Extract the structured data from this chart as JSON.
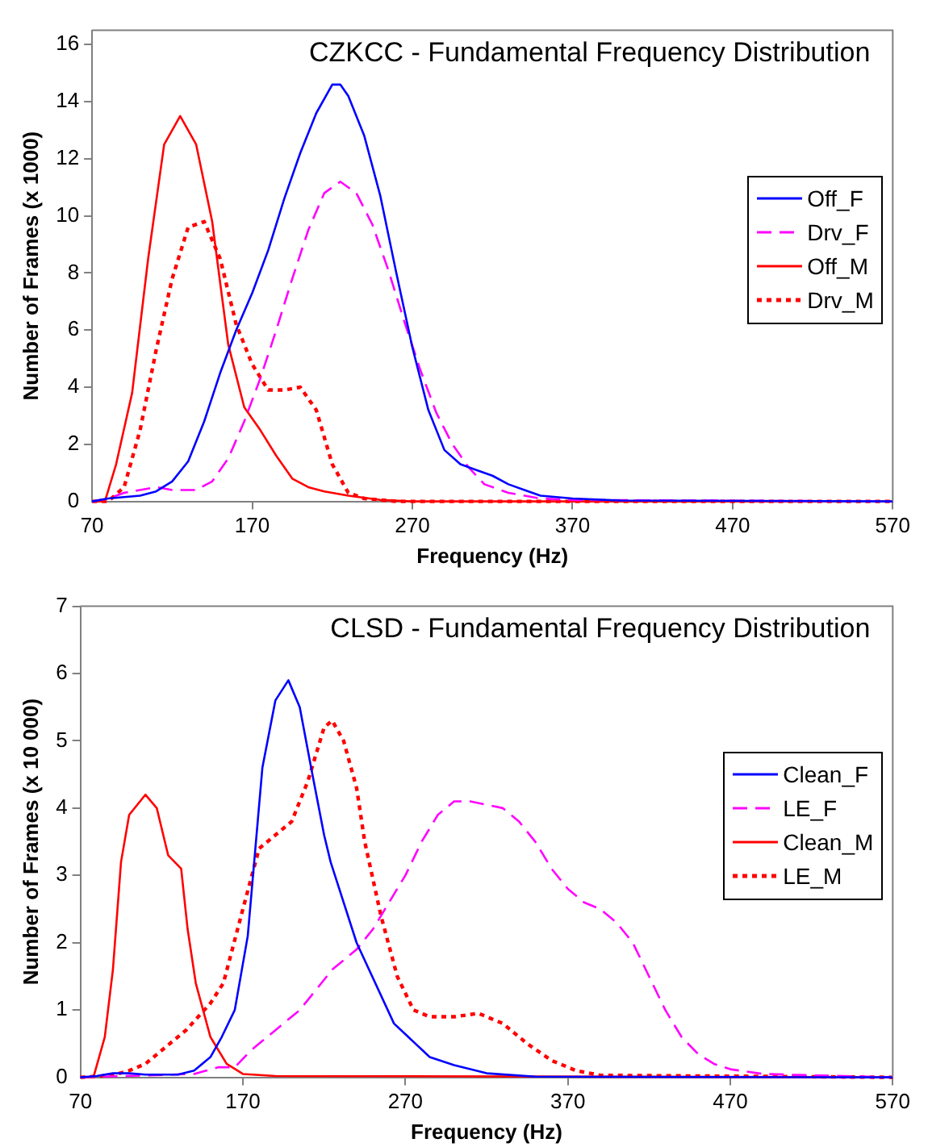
{
  "chart_data": [
    {
      "type": "line",
      "title": "CZKCC - Fundamental Frequency Distribution",
      "xlabel": "Frequency (Hz)",
      "ylabel": "Number of Frames (x 1000)",
      "xlim": [
        70,
        570
      ],
      "xticks": [
        70,
        170,
        270,
        370,
        470,
        570
      ],
      "ylim": [
        0,
        16.5
      ],
      "yticks": [
        0,
        2,
        4,
        6,
        8,
        10,
        12,
        14,
        16
      ],
      "grid": false,
      "legend": "right",
      "marker": "none",
      "series": [
        {
          "name": "Off_F",
          "color": "#0000ff",
          "line_style": "solid",
          "x": [
            70,
            80,
            90,
            100,
            110,
            120,
            130,
            140,
            150,
            160,
            170,
            180,
            190,
            200,
            210,
            220,
            225,
            230,
            240,
            250,
            260,
            270,
            280,
            290,
            300,
            310,
            320,
            330,
            340,
            350,
            370,
            400,
            570
          ],
          "values": [
            0,
            0.1,
            0.15,
            0.2,
            0.35,
            0.7,
            1.4,
            2.8,
            4.5,
            6,
            7.3,
            8.8,
            10.6,
            12.2,
            13.6,
            14.6,
            14.6,
            14.2,
            12.8,
            10.7,
            8,
            5.4,
            3.2,
            1.8,
            1.3,
            1.1,
            0.9,
            0.6,
            0.4,
            0.2,
            0.1,
            0.03,
            0
          ]
        },
        {
          "name": "Drv_F",
          "color": "#ff00ff",
          "line_style": "dashed",
          "x": [
            70,
            80,
            90,
            100,
            110,
            120,
            135,
            145,
            155,
            165,
            175,
            185,
            195,
            205,
            215,
            225,
            235,
            245,
            255,
            265,
            275,
            285,
            295,
            305,
            315,
            330,
            350,
            370,
            570
          ],
          "values": [
            0,
            0.1,
            0.3,
            0.4,
            0.5,
            0.4,
            0.4,
            0.7,
            1.5,
            2.8,
            4.3,
            6,
            7.8,
            9.5,
            10.8,
            11.2,
            10.8,
            9.7,
            8.1,
            6.3,
            4.6,
            3.1,
            2,
            1.2,
            0.6,
            0.3,
            0.1,
            0.05,
            0
          ]
        },
        {
          "name": "Off_M",
          "color": "#ff0000",
          "line_style": "solid",
          "x": [
            70,
            78,
            85,
            95,
            105,
            115,
            125,
            135,
            145,
            155,
            165,
            175,
            185,
            195,
            205,
            215,
            230,
            250,
            270,
            570
          ],
          "values": [
            0,
            0,
            1.3,
            3.8,
            8.5,
            12.5,
            13.5,
            12.5,
            9.8,
            5.5,
            3.3,
            2.5,
            1.6,
            0.8,
            0.5,
            0.35,
            0.2,
            0.05,
            0,
            0
          ]
        },
        {
          "name": "Drv_M",
          "color": "#ff0000",
          "line_style": "dotted",
          "x": [
            70,
            80,
            90,
            100,
            110,
            120,
            130,
            140,
            150,
            160,
            170,
            180,
            190,
            200,
            210,
            220,
            230,
            240,
            260,
            570
          ],
          "values": [
            0,
            0,
            0.5,
            2.5,
            5.3,
            7.8,
            9.6,
            9.8,
            8.5,
            6.2,
            4.8,
            3.9,
            3.9,
            4,
            3.2,
            1.3,
            0.3,
            0.1,
            0,
            0
          ]
        }
      ]
    },
    {
      "type": "line",
      "title": "CLSD - Fundamental Frequency Distribution",
      "xlabel": "Frequency (Hz)",
      "ylabel": "Number of Frames (x 10 000)",
      "xlim": [
        70,
        570
      ],
      "xticks": [
        70,
        170,
        270,
        370,
        470,
        570
      ],
      "ylim": [
        0,
        7
      ],
      "yticks": [
        0,
        1,
        2,
        3,
        4,
        5,
        6,
        7
      ],
      "grid": false,
      "legend": "right",
      "marker": "none",
      "series": [
        {
          "name": "Clean_F",
          "color": "#0000ff",
          "line_style": "solid",
          "x": [
            70,
            80,
            90,
            100,
            110,
            130,
            140,
            150,
            157,
            165,
            173,
            182,
            190,
            198,
            205,
            212,
            220,
            224,
            240,
            263,
            285,
            300,
            320,
            350,
            570
          ],
          "values": [
            0,
            0.02,
            0.06,
            0.06,
            0.04,
            0.04,
            0.1,
            0.3,
            0.6,
            1,
            2.1,
            4.6,
            5.6,
            5.9,
            5.5,
            4.6,
            3.6,
            3.2,
            2,
            0.8,
            0.3,
            0.18,
            0.06,
            0.01,
            0
          ]
        },
        {
          "name": "LE_F",
          "color": "#ff00ff",
          "line_style": "dashed",
          "x": [
            70,
            140,
            155,
            165,
            175,
            190,
            205,
            215,
            225,
            240,
            250,
            260,
            270,
            280,
            290,
            300,
            310,
            320,
            330,
            340,
            350,
            360,
            370,
            380,
            390,
            400,
            410,
            420,
            430,
            440,
            450,
            460,
            470,
            490,
            520,
            570
          ],
          "values": [
            0,
            0.05,
            0.15,
            0.15,
            0.4,
            0.7,
            1,
            1.3,
            1.6,
            1.9,
            2.2,
            2.6,
            3,
            3.5,
            3.9,
            4.1,
            4.1,
            4.05,
            4,
            3.8,
            3.5,
            3.1,
            2.8,
            2.6,
            2.5,
            2.3,
            2,
            1.5,
            1,
            0.6,
            0.35,
            0.2,
            0.12,
            0.05,
            0.03,
            0
          ]
        },
        {
          "name": "Clean_M",
          "color": "#ff0000",
          "line_style": "solid",
          "x": [
            70,
            78,
            85,
            90,
            95,
            100,
            110,
            117,
            124,
            132,
            136,
            141,
            150,
            160,
            170,
            190,
            570
          ],
          "values": [
            0,
            0,
            0.6,
            1.6,
            3.2,
            3.9,
            4.2,
            4,
            3.3,
            3.1,
            2.2,
            1.4,
            0.6,
            0.2,
            0.05,
            0.02,
            0
          ]
        },
        {
          "name": "LE_M",
          "color": "#ff0000",
          "line_style": "dotted",
          "x": [
            70,
            90,
            100,
            110,
            120,
            135,
            150,
            158,
            170,
            180,
            190,
            200,
            210,
            220,
            225,
            232,
            240,
            245,
            255,
            265,
            275,
            285,
            300,
            315,
            330,
            345,
            360,
            375,
            390,
            570
          ],
          "values": [
            0,
            0.03,
            0.1,
            0.2,
            0.4,
            0.7,
            1.1,
            1.4,
            2.5,
            3.4,
            3.6,
            3.8,
            4.4,
            5.2,
            5.3,
            5,
            4.3,
            3.5,
            2.4,
            1.5,
            1,
            0.9,
            0.9,
            0.95,
            0.8,
            0.5,
            0.25,
            0.1,
            0.03,
            0
          ]
        }
      ]
    }
  ]
}
